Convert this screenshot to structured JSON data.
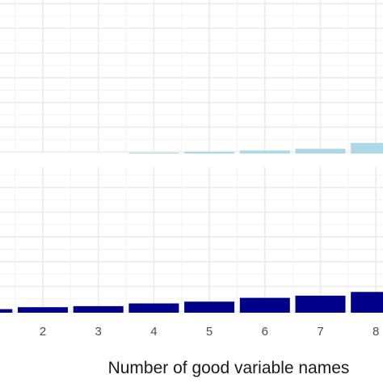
{
  "chart_data": {
    "type": "bar",
    "xlabel": "Number of good variable names",
    "x_ticks": [
      "2",
      "3",
      "4",
      "5",
      "6",
      "7",
      "8"
    ],
    "grid": true,
    "legend": "none",
    "panels": [
      {
        "color": "#add8e6",
        "x": [
          4,
          5,
          6,
          7,
          8
        ],
        "values": [
          0.7,
          1.5,
          2.4,
          3.8,
          8.5
        ],
        "ylim": [
          0,
          100
        ]
      },
      {
        "color": "#00008b",
        "x": [
          1,
          2,
          3,
          4,
          5,
          6,
          7,
          8
        ],
        "values": [
          3.0,
          4.6,
          5.5,
          7.8,
          9.3,
          12.5,
          14.3,
          17.4
        ],
        "ylim": [
          0,
          100
        ]
      }
    ]
  }
}
